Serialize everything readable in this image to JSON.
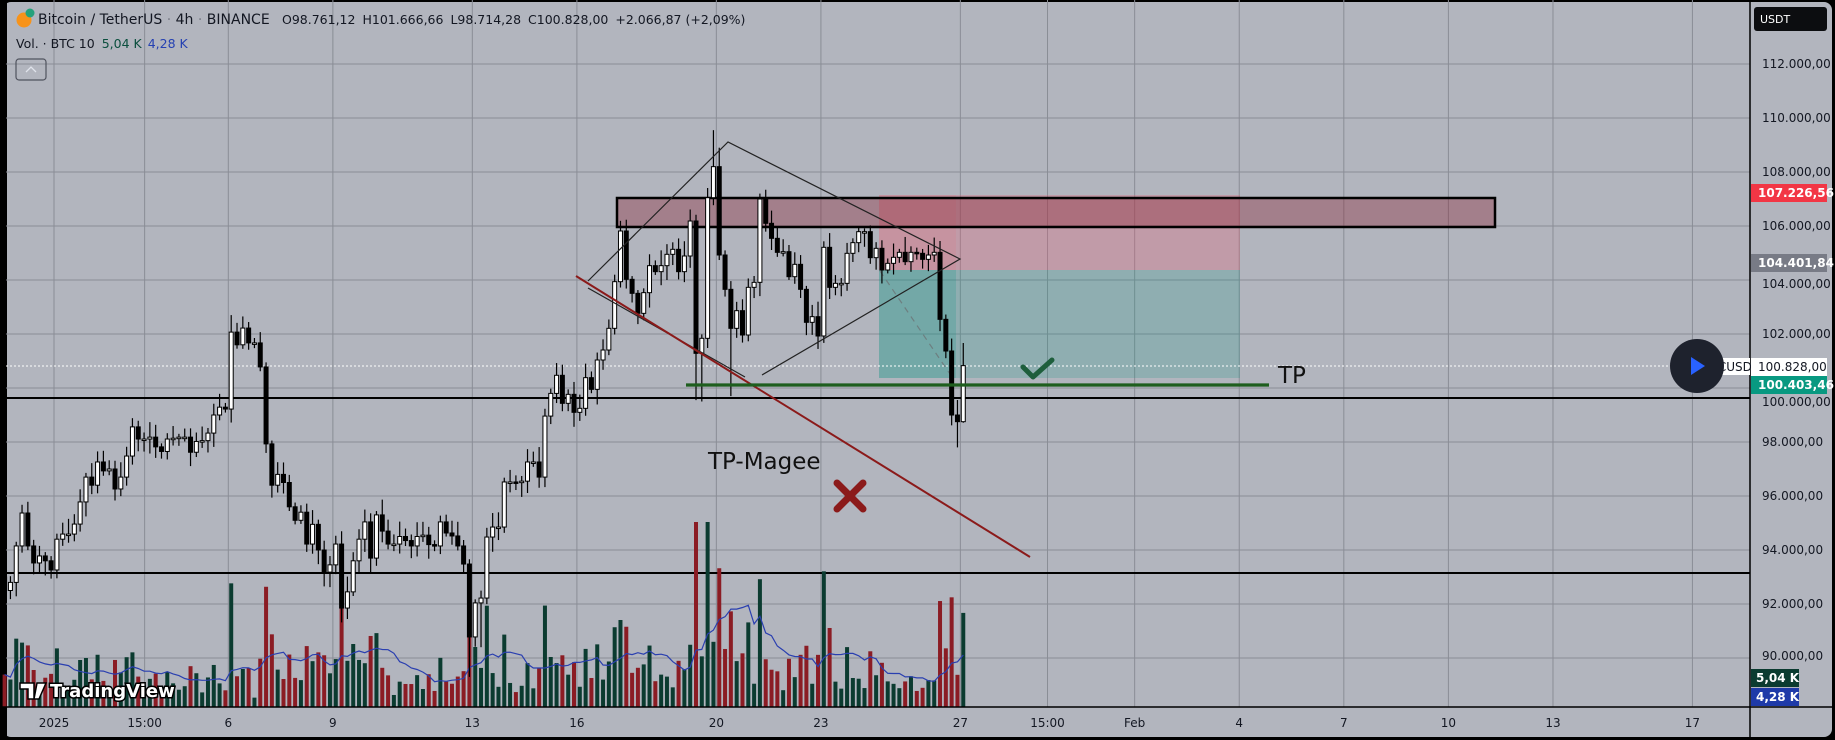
{
  "header": {
    "symbol": "Bitcoin / TetherUS",
    "interval": "4h",
    "exchange": "BINANCE",
    "ohlc": [
      {
        "label": "O",
        "value": "98.761,12"
      },
      {
        "label": "H",
        "value": "101.666,66"
      },
      {
        "label": "L",
        "value": "98.714,28"
      },
      {
        "label": "C",
        "value": "100.828,00"
      }
    ],
    "change": "+2.066,87 (+2,09%)",
    "volume_label": "Vol. · BTC 10",
    "volume_value": "5,04 K",
    "volume_ma": "4,28 K",
    "collapse_icon": "chevron-up-icon"
  },
  "price_axis": {
    "currency": "USDT",
    "ticks": [
      "112.000,00",
      "110.000,00",
      "108.000,00",
      "106.000,00",
      "104.000,00",
      "102.000,00",
      "100.000,00",
      "98.000,00",
      "96.000,00",
      "94.000,00",
      "92.000,00",
      "90.000,00"
    ],
    "tick_values": [
      112000,
      110000,
      108000,
      106000,
      104000,
      102000,
      100000,
      98000,
      96000,
      94000,
      92000,
      90000
    ],
    "labels": {
      "stop": {
        "text": "107.226,56",
        "value": 107226.56,
        "color": "#f23645"
      },
      "entry": {
        "text": "104.401,84",
        "value": 104401.84,
        "color": "#787b86"
      },
      "last": {
        "text": "100.828,00",
        "value": 100828,
        "color": "#ffffff"
      },
      "target": {
        "text": "100.403,46",
        "value": 100403.46,
        "color": "#089981"
      },
      "vol": {
        "text": "5,04 K",
        "color": "#0b3b30"
      },
      "vol_ma": {
        "text": "4,28 K",
        "color": "#1e3aa8"
      }
    },
    "symbol_tag": "BTCUSDT"
  },
  "time_axis": {
    "labels": [
      {
        "text": "2025",
        "day": 0
      },
      {
        "text": "15:00",
        "day": 2.6
      },
      {
        "text": "6",
        "day": 5
      },
      {
        "text": "9",
        "day": 8
      },
      {
        "text": "13",
        "day": 12
      },
      {
        "text": "16",
        "day": 15
      },
      {
        "text": "20",
        "day": 19
      },
      {
        "text": "23",
        "day": 22
      },
      {
        "text": "27",
        "day": 26
      },
      {
        "text": "15:00",
        "day": 28.5
      },
      {
        "text": "Feb",
        "day": 31
      },
      {
        "text": "4",
        "day": 34
      },
      {
        "text": "7",
        "day": 37
      },
      {
        "text": "10",
        "day": 40
      },
      {
        "text": "13",
        "day": 43
      },
      {
        "text": "17",
        "day": 47
      }
    ]
  },
  "annotations": {
    "tp_magee": "TP-Magee",
    "tp": "TP",
    "resistance_zone": [
      106000,
      107200
    ],
    "support_lines": [
      99630,
      93150
    ],
    "tp_line": 100150,
    "colors": {
      "up": "#ffffff",
      "down": "#000000",
      "vol_up": "#0b3b30",
      "vol_down": "#8b1c24",
      "vol_ma": "#2a3fb0",
      "tp_line": "#1e5e1e",
      "trend": "#8b1a1a"
    }
  },
  "watermark": "TradingView",
  "chart_data": {
    "type": "candlestick",
    "title": "Bitcoin / TetherUS 4h BINANCE",
    "interval_hours": 4,
    "first_index": -9,
    "first_open": 93000,
    "closes": [
      92500,
      92800,
      94150,
      95370,
      94150,
      93520,
      93780,
      93600,
      93260,
      94400,
      94590,
      94590,
      94960,
      95780,
      96700,
      96400,
      97260,
      96930,
      97000,
      96260,
      96700,
      97480,
      98560,
      98110,
      98110,
      98180,
      97820,
      97650,
      98110,
      98140,
      98180,
      98180,
      97620,
      98020,
      98050,
      98330,
      99000,
      99290,
      99220,
      102070,
      101600,
      102220,
      101670,
      101670,
      100780,
      97930,
      96400,
      96800,
      96500,
      95600,
      95100,
      95400,
      94220,
      94950,
      94000,
      93180,
      93450,
      94220,
      91850,
      92450,
      93600,
      94400,
      95040,
      93700,
      95300,
      94700,
      94220,
      94220,
      94500,
      94350,
      94150,
      94500,
      94550,
      94200,
      94150,
      95040,
      94630,
      94520,
      94150,
      93480,
      90780,
      92040,
      92220,
      94480,
      94850,
      94850,
      96520,
      96520,
      96500,
      96550,
      97260,
      97260,
      96700,
      98960,
      99800,
      100470,
      99432,
      99765,
      99099,
      99247,
      100383,
      99950,
      101037,
      101407,
      102210,
      103938,
      105815,
      104025,
      103506,
      102765,
      103531,
      104531,
      104309,
      104531,
      104951,
      105136,
      104309,
      104889,
      106185,
      101284,
      101840,
      107049,
      108198,
      104926,
      103654,
      102210,
      102864,
      101963,
      103728,
      103913,
      107000,
      106099,
      105543,
      105024,
      105049,
      104123,
      104580,
      103654,
      102432,
      102642,
      101926,
      105210,
      103728,
      103876,
      103876,
      104988,
      105383,
      105790,
      105790,
      104827,
      105173,
      104370,
      104617,
      104840,
      105025,
      104679,
      105025,
      104988,
      104765,
      104926,
      105025,
      102543,
      101370,
      98999,
      98753,
      100828
    ],
    "wick_overrides": {
      "30": {
        "h": 102700
      },
      "32": {
        "h": 102650
      },
      "71": {
        "l": 89300
      },
      "73": {
        "l": 90400
      },
      "110": {
        "l": 99550
      },
      "111": {
        "l": 99500
      },
      "113": {
        "h": 109550
      },
      "114": {
        "h": 108900
      },
      "116": {
        "l": 99700
      },
      "121": {
        "h": 107200
      },
      "155": {
        "l": 97800
      },
      "156": {
        "h": 101667,
        "l": 98714
      }
    },
    "ylim": [
      89000,
      113000
    ],
    "volume_unit": "K BTC"
  }
}
